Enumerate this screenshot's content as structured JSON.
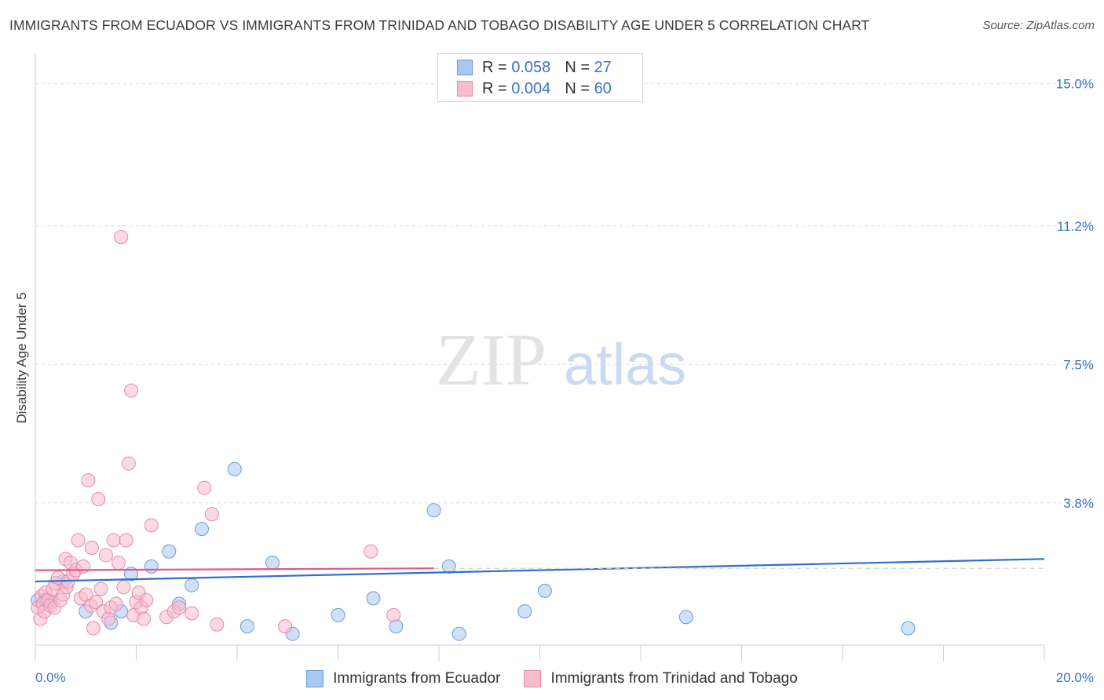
{
  "title": "IMMIGRANTS FROM ECUADOR VS IMMIGRANTS FROM TRINIDAD AND TOBAGO DISABILITY AGE UNDER 5 CORRELATION CHART",
  "source": "Source: ZipAtlas.com",
  "watermark": {
    "zip": "ZIP",
    "atlas": "atlas"
  },
  "stats": [
    {
      "r_label": "R =",
      "r_value": "0.058",
      "n_label": "N =",
      "n_value": "27",
      "color": "#a8c8f0",
      "border": "#6a9bd8"
    },
    {
      "r_label": "R =",
      "r_value": "0.004",
      "n_label": "N =",
      "n_value": "60",
      "color": "#f8bccd",
      "border": "#e58aa8"
    }
  ],
  "legend": [
    {
      "label": "Immigrants from Ecuador",
      "color": "#a8c8f0",
      "border": "#6a9bd8"
    },
    {
      "label": "Immigrants from Trinidad and Tobago",
      "color": "#f8bccd",
      "border": "#e58aa8"
    }
  ],
  "chart_data": {
    "type": "scatter",
    "title": "IMMIGRANTS FROM ECUADOR VS IMMIGRANTS FROM TRINIDAD AND TOBAGO DISABILITY AGE UNDER 5 CORRELATION CHART",
    "xlabel": "",
    "ylabel": "Disability Age Under 5",
    "xlim": [
      0,
      20
    ],
    "ylim": [
      0,
      15.6
    ],
    "x_tick_labels": [
      "0.0%",
      "20.0%"
    ],
    "y_ticks": [
      3.8,
      7.5,
      11.2,
      15.0
    ],
    "y_tick_labels": [
      "3.8%",
      "7.5%",
      "11.2%",
      "15.0%"
    ],
    "grid": true,
    "series": [
      {
        "name": "Immigrants from Ecuador",
        "color": "#6a9bd8",
        "fill": "#a8c8f0",
        "points": [
          [
            0.05,
            1.2
          ],
          [
            0.2,
            1.2
          ],
          [
            0.3,
            1.15
          ],
          [
            0.55,
            1.7
          ],
          [
            1.0,
            0.9
          ],
          [
            1.5,
            0.6
          ],
          [
            1.7,
            0.9
          ],
          [
            1.9,
            1.9
          ],
          [
            2.3,
            2.1
          ],
          [
            2.65,
            2.5
          ],
          [
            2.85,
            1.1
          ],
          [
            3.1,
            1.6
          ],
          [
            3.3,
            3.1
          ],
          [
            3.95,
            4.7
          ],
          [
            4.2,
            0.5
          ],
          [
            4.7,
            2.2
          ],
          [
            5.1,
            0.3
          ],
          [
            6.0,
            0.8
          ],
          [
            6.7,
            1.25
          ],
          [
            7.15,
            0.5
          ],
          [
            7.9,
            3.6
          ],
          [
            8.2,
            2.1
          ],
          [
            8.4,
            0.3
          ],
          [
            9.7,
            0.9
          ],
          [
            10.1,
            1.45
          ],
          [
            12.9,
            0.75
          ],
          [
            17.3,
            0.45
          ]
        ],
        "trend": {
          "x": [
            0,
            20
          ],
          "y": [
            1.7,
            2.3
          ]
        },
        "trend_color": "#2f6fcf"
      },
      {
        "name": "Immigrants from Trinidad and Tobago",
        "color": "#e58aa8",
        "fill": "#f8bccd",
        "points": [
          [
            0.05,
            1.0
          ],
          [
            0.1,
            0.7
          ],
          [
            0.12,
            1.3
          ],
          [
            0.15,
            1.1
          ],
          [
            0.18,
            0.9
          ],
          [
            0.2,
            1.4
          ],
          [
            0.25,
            1.2
          ],
          [
            0.3,
            1.05
          ],
          [
            0.35,
            1.5
          ],
          [
            0.38,
            1.0
          ],
          [
            0.4,
            1.65
          ],
          [
            0.45,
            1.8
          ],
          [
            0.5,
            1.2
          ],
          [
            0.55,
            1.35
          ],
          [
            0.6,
            2.3
          ],
          [
            0.62,
            1.55
          ],
          [
            0.65,
            1.7
          ],
          [
            0.7,
            2.2
          ],
          [
            0.75,
            1.9
          ],
          [
            0.8,
            2.0
          ],
          [
            0.85,
            2.8
          ],
          [
            0.9,
            1.25
          ],
          [
            0.95,
            2.1
          ],
          [
            1.0,
            1.35
          ],
          [
            1.05,
            4.4
          ],
          [
            1.1,
            1.05
          ],
          [
            1.12,
            2.6
          ],
          [
            1.15,
            0.45
          ],
          [
            1.2,
            1.15
          ],
          [
            1.25,
            3.9
          ],
          [
            1.3,
            1.5
          ],
          [
            1.35,
            0.9
          ],
          [
            1.4,
            2.4
          ],
          [
            1.45,
            0.7
          ],
          [
            1.5,
            1.0
          ],
          [
            1.55,
            2.8
          ],
          [
            1.6,
            1.1
          ],
          [
            1.65,
            2.2
          ],
          [
            1.7,
            10.9
          ],
          [
            1.75,
            1.55
          ],
          [
            1.8,
            2.8
          ],
          [
            1.85,
            4.85
          ],
          [
            1.9,
            6.8
          ],
          [
            1.95,
            0.8
          ],
          [
            2.0,
            1.15
          ],
          [
            2.05,
            1.4
          ],
          [
            2.1,
            1.0
          ],
          [
            2.15,
            0.7
          ],
          [
            2.2,
            1.2
          ],
          [
            2.3,
            3.2
          ],
          [
            2.6,
            0.75
          ],
          [
            2.75,
            0.9
          ],
          [
            2.85,
            1.0
          ],
          [
            3.1,
            0.85
          ],
          [
            3.35,
            4.2
          ],
          [
            3.5,
            3.5
          ],
          [
            3.6,
            0.55
          ],
          [
            4.95,
            0.5
          ],
          [
            6.65,
            2.5
          ],
          [
            7.1,
            0.8
          ]
        ],
        "trend": {
          "x": [
            0,
            7.9
          ],
          "y": [
            2.0,
            2.05
          ]
        },
        "trend_color": "#e0588a"
      }
    ]
  }
}
